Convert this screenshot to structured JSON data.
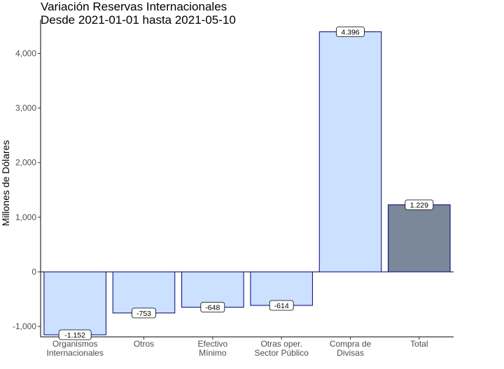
{
  "title": "Variación Reservas Internacionales",
  "subtitle": "Desde 2021-01-01 hasta 2021-05-10",
  "colors": {
    "bar": "#cce0ff",
    "total": "#7a8899",
    "stroke": "#00007f"
  },
  "chart_data": {
    "type": "bar",
    "title": "Variación Reservas Internacionales",
    "subtitle": "Desde 2021-01-01 hasta 2021-05-10",
    "xlabel": "",
    "ylabel": "Millones de Dólares",
    "ylim": [
      -1152,
      4396
    ],
    "yticks": [
      -1000,
      0,
      1000,
      2000,
      3000,
      4000
    ],
    "ytick_labels": [
      "-1,000",
      "0",
      "1,000",
      "2,000",
      "3,000",
      "4,000"
    ],
    "categories": [
      [
        "Organismos",
        "Internacionales"
      ],
      [
        "Otros"
      ],
      [
        "Efectivo",
        "Mínimo"
      ],
      [
        "Otras oper.",
        "Sector Público"
      ],
      [
        "Compra de",
        "Divisas"
      ],
      [
        "Total"
      ]
    ],
    "values": [
      -1152,
      -753,
      -648,
      -614,
      4396,
      1229
    ],
    "value_labels": [
      "-1.152",
      "-753",
      "-648",
      "-614",
      "4.396",
      "1.229"
    ],
    "grid": false,
    "legend": "none"
  }
}
